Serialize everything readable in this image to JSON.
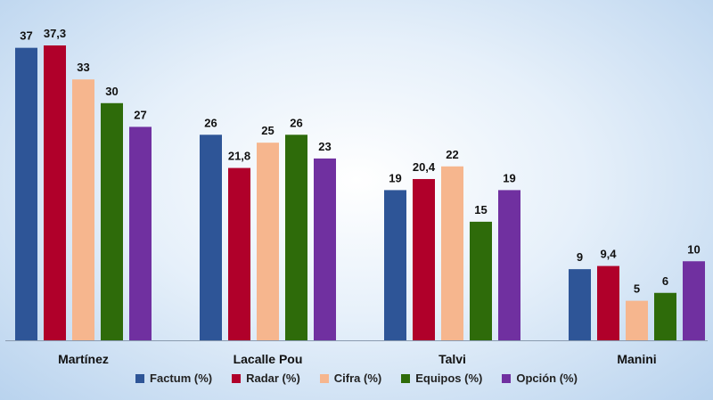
{
  "chart_data": {
    "type": "bar",
    "categories": [
      "Martínez",
      "Lacalle Pou",
      "Talvi",
      "Manini"
    ],
    "series": [
      {
        "name": "Factum (%)",
        "color": "#2e5597",
        "values": [
          37,
          26,
          19,
          9
        ],
        "labels": [
          "37",
          "26",
          "19",
          "9"
        ]
      },
      {
        "name": "Radar (%)",
        "color": "#b0002a",
        "values": [
          37.3,
          21.8,
          20.4,
          9.4
        ],
        "labels": [
          "37,3",
          "21,8",
          "20,4",
          "9,4"
        ]
      },
      {
        "name": "Cifra (%)",
        "color": "#f6b68e",
        "values": [
          33,
          25,
          22,
          5
        ],
        "labels": [
          "33",
          "25",
          "22",
          "5"
        ]
      },
      {
        "name": "Equipos (%)",
        "color": "#2e6b0a",
        "values": [
          30,
          26,
          15,
          6
        ],
        "labels": [
          "30",
          "26",
          "15",
          "6"
        ]
      },
      {
        "name": "Opción (%)",
        "color": "#7030a0",
        "values": [
          27,
          23,
          19,
          10
        ],
        "labels": [
          "27",
          "23",
          "19",
          "10"
        ]
      }
    ],
    "ylim": [
      0,
      37.3
    ],
    "grid": false,
    "legend_position": "bottom"
  }
}
